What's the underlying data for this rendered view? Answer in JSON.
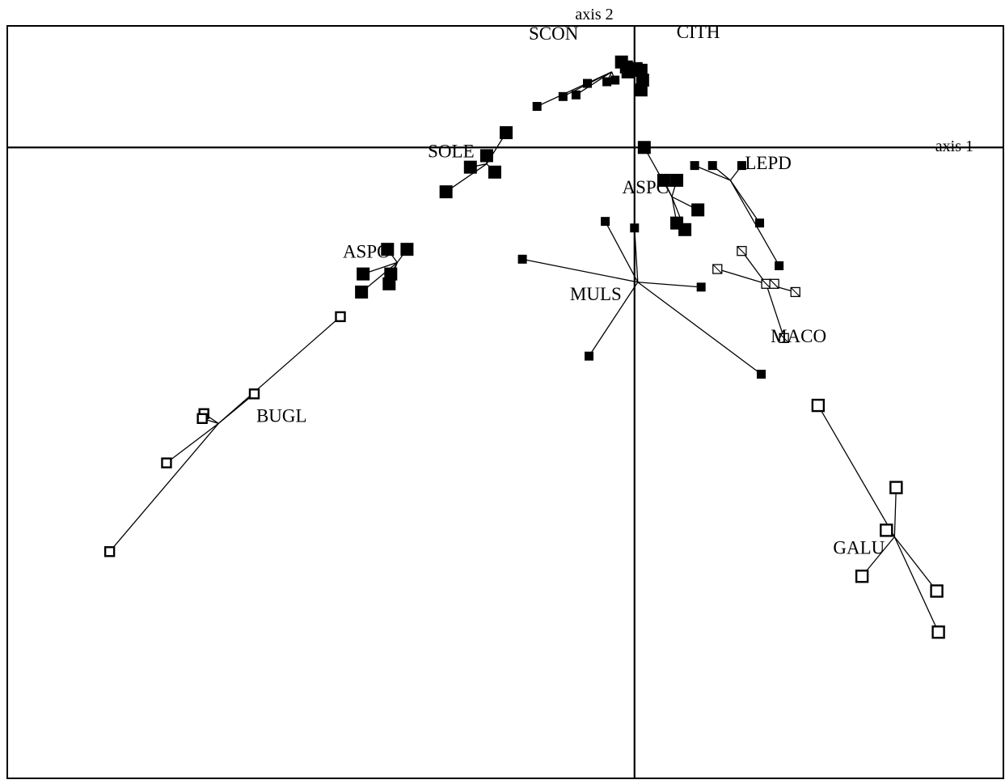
{
  "chart_data": {
    "type": "scatter",
    "subtype": "star plot (group centroid with spokes to member points)",
    "title": "",
    "xlabel": "axis 1",
    "ylabel": "axis 2",
    "xlim": [
      -3.86,
      2.27
    ],
    "ylim": [
      -3.84,
      0.74
    ],
    "grid": false,
    "legend": "none",
    "groups": [
      {
        "name": "SCON",
        "marker": "filled",
        "marker_size": "small",
        "centroid": [
          -0.14,
          0.46
        ],
        "points": [
          [
            -0.6,
            0.25
          ],
          [
            -0.44,
            0.31
          ],
          [
            -0.36,
            0.32
          ],
          [
            -0.29,
            0.39
          ],
          [
            -0.17,
            0.4
          ],
          [
            -0.12,
            0.41
          ]
        ]
      },
      {
        "name": "CITH",
        "marker": "filled",
        "marker_size": "large",
        "centroid": [
          0.02,
          0.47
        ],
        "points": [
          [
            -0.08,
            0.52
          ],
          [
            -0.05,
            0.49
          ],
          [
            -0.04,
            0.46
          ],
          [
            0.01,
            0.48
          ],
          [
            0.04,
            0.47
          ],
          [
            0.05,
            0.41
          ],
          [
            0.04,
            0.35
          ]
        ]
      },
      {
        "name": "SOLE",
        "marker": "filled",
        "marker_size": "large",
        "centroid": [
          -0.91,
          -0.1
        ],
        "points": [
          [
            -0.79,
            0.09
          ],
          [
            -0.91,
            -0.05
          ],
          [
            -0.86,
            -0.15
          ],
          [
            -1.01,
            -0.12
          ],
          [
            -1.16,
            -0.27
          ]
        ]
      },
      {
        "name": "ASPO",
        "marker": "filled",
        "marker_size": "large",
        "centroid": [
          -1.46,
          -0.7
        ],
        "points": [
          [
            -1.52,
            -0.62
          ],
          [
            -1.4,
            -0.62
          ],
          [
            -1.67,
            -0.77
          ],
          [
            -1.5,
            -0.77
          ],
          [
            -1.51,
            -0.83
          ],
          [
            -1.68,
            -0.88
          ]
        ]
      },
      {
        "name": "ASPC",
        "marker": "filled",
        "marker_size": "large",
        "centroid": [
          0.23,
          -0.3
        ],
        "points": [
          [
            0.06,
            0.0
          ],
          [
            0.18,
            -0.2
          ],
          [
            0.26,
            -0.2
          ],
          [
            0.39,
            -0.38
          ],
          [
            0.26,
            -0.46
          ],
          [
            0.31,
            -0.5
          ]
        ]
      },
      {
        "name": "LEPD",
        "marker": "filled",
        "marker_size": "small",
        "centroid": [
          0.59,
          -0.2
        ],
        "points": [
          [
            0.37,
            -0.11
          ],
          [
            0.48,
            -0.11
          ],
          [
            0.66,
            -0.11
          ],
          [
            0.77,
            -0.46
          ],
          [
            0.89,
            -0.72
          ]
        ]
      },
      {
        "name": "MULS",
        "marker": "filled",
        "marker_size": "small",
        "centroid": [
          0.02,
          -0.82
        ],
        "points": [
          [
            -0.18,
            -0.45
          ],
          [
            0.0,
            -0.49
          ],
          [
            -0.69,
            -0.68
          ],
          [
            0.41,
            -0.85
          ],
          [
            -0.28,
            -1.27
          ],
          [
            0.78,
            -1.38
          ]
        ]
      },
      {
        "name": "MACO",
        "marker": "hatched",
        "marker_size": "small",
        "centroid": [
          0.81,
          -0.83
        ],
        "points": [
          [
            0.66,
            -0.63
          ],
          [
            0.51,
            -0.74
          ],
          [
            0.81,
            -0.83
          ],
          [
            0.86,
            -0.83
          ],
          [
            0.99,
            -0.88
          ],
          [
            0.92,
            -1.16
          ]
        ]
      },
      {
        "name": "BUGL",
        "marker": "open",
        "marker_size": "medium",
        "centroid": [
          -2.56,
          -1.68
        ],
        "points": [
          [
            -1.81,
            -1.03
          ],
          [
            -2.34,
            -1.5
          ],
          [
            -2.65,
            -1.62
          ],
          [
            -2.66,
            -1.65
          ],
          [
            -2.88,
            -1.92
          ],
          [
            -3.23,
            -2.46
          ]
        ]
      },
      {
        "name": "GALU",
        "marker": "open",
        "marker_size": "large",
        "centroid": [
          1.6,
          -2.37
        ],
        "points": [
          [
            1.13,
            -1.57
          ],
          [
            1.61,
            -2.07
          ],
          [
            1.55,
            -2.33
          ],
          [
            1.4,
            -2.61
          ],
          [
            1.86,
            -2.7
          ],
          [
            1.87,
            -2.95
          ]
        ]
      }
    ]
  }
}
